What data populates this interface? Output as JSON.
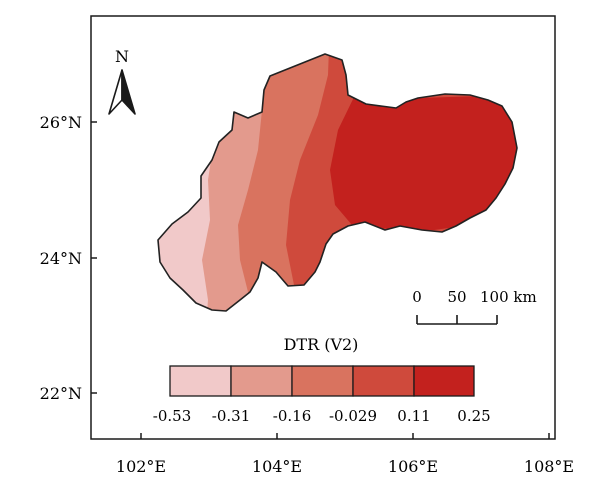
{
  "map": {
    "north_label": "N",
    "lat_labels": [
      "26°N",
      "24°N",
      "22°N"
    ],
    "lon_labels": [
      "102°E",
      "104°E",
      "106°E",
      "108°E"
    ],
    "scale_labels": [
      "0",
      "50",
      "100 km"
    ],
    "legend": {
      "title": "DTR (V2)",
      "breaks": [
        "-0.53",
        "-0.31",
        "-0.16",
        "-0.029",
        "0.11",
        "0.25"
      ],
      "colors": [
        "#f1c9c9",
        "#e39a8d",
        "#d9735f",
        "#cf4a3c",
        "#c3211e"
      ]
    },
    "zone_colors": [
      "#f1c9c9",
      "#e39a8d",
      "#d9735f",
      "#cf4a3c",
      "#c3211e"
    ]
  }
}
